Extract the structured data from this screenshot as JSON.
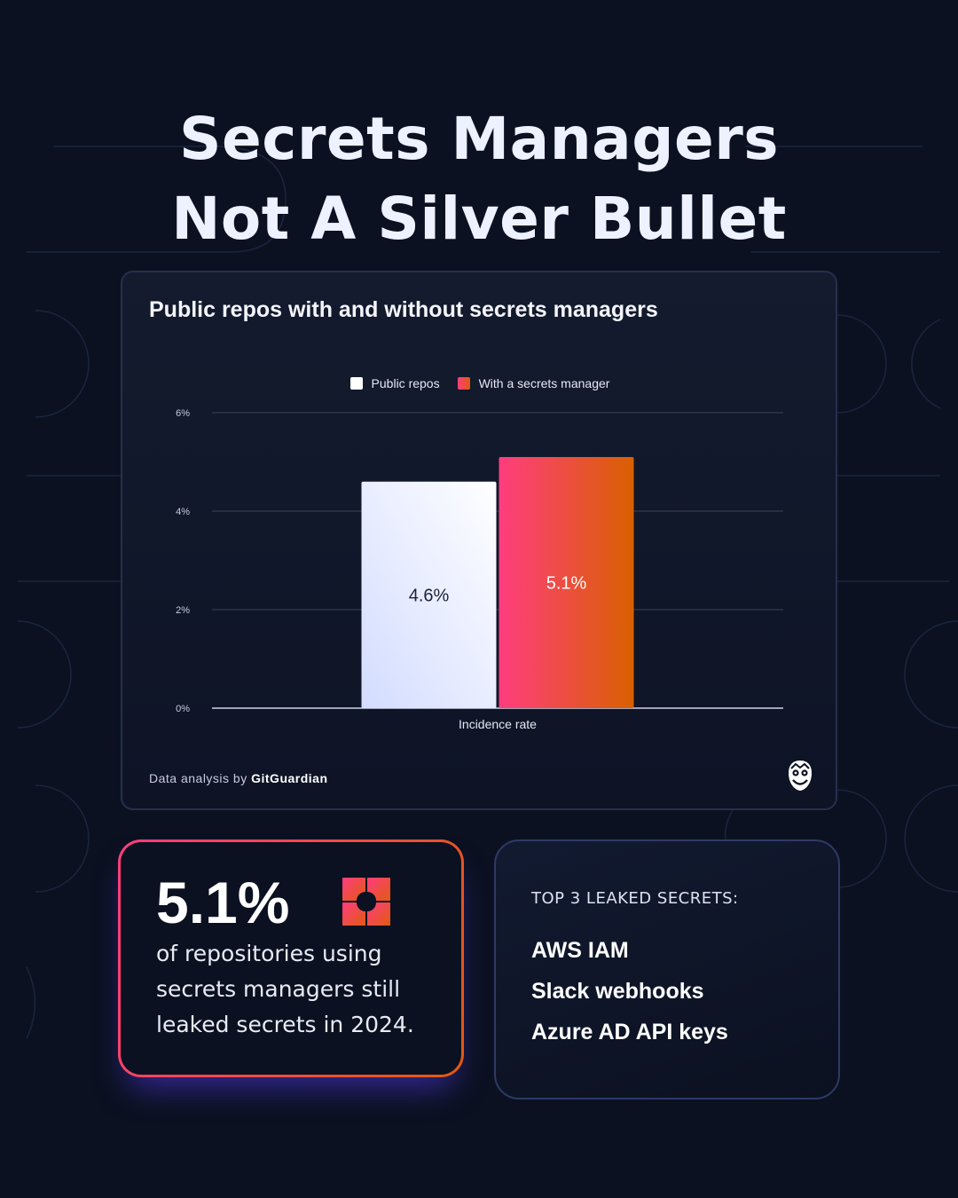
{
  "title": {
    "line1": "Secrets Managers",
    "line2": "Not A Silver Bullet"
  },
  "colors": {
    "background": "#0b1120",
    "public_repos": "#ffffff",
    "secrets_manager_start": "#ff3d7f",
    "secrets_manager_end": "#e05a10"
  },
  "chart_data": {
    "type": "bar",
    "title": "Public repos with and without secrets managers",
    "categories": [
      "Incidence rate"
    ],
    "series": [
      {
        "name": "Public repos",
        "values": [
          4.6
        ],
        "label": "4.6%"
      },
      {
        "name": "With a secrets manager",
        "values": [
          5.1
        ],
        "label": "5.1%"
      }
    ],
    "xlabel": "",
    "ylabel": "",
    "ylim": [
      0,
      6
    ],
    "yticks": [
      "0%",
      "2%",
      "4%",
      "6%"
    ],
    "grid": true,
    "legend": "top-center"
  },
  "footer": {
    "prefix": "Data analysis by",
    "brand": "GitGuardian",
    "icon": "owl-icon"
  },
  "stat": {
    "value": "5.1%",
    "icon": "gitguardian-logo-icon",
    "text": "of repositories using secrets managers still leaked secrets in 2024."
  },
  "top_secrets": {
    "header": "TOP 3 LEAKED SECRETS:",
    "items": [
      "AWS IAM",
      "Slack webhooks",
      "Azure AD API keys"
    ]
  }
}
